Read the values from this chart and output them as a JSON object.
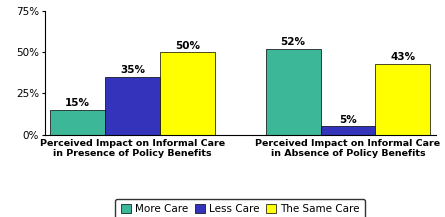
{
  "groups": [
    "Perceived Impact on Informal Care\nin Presence of Policy Benefits",
    "Perceived Impact on Informal Care\nin Absence of Policy Benefits"
  ],
  "series": {
    "More Care": [
      15,
      52
    ],
    "Less Care": [
      35,
      5
    ],
    "The Same Care": [
      50,
      43
    ]
  },
  "colors": {
    "More Care": "#3CB898",
    "Less Care": "#3333BB",
    "The Same Care": "#FFFF00"
  },
  "ylim": [
    0,
    75
  ],
  "yticks": [
    0,
    25,
    50,
    75
  ],
  "ytick_labels": [
    "0%",
    "25%",
    "50%",
    "75%"
  ],
  "bar_width": 0.28,
  "background_color": "#FFFFFF",
  "legend_labels": [
    "More Care",
    "Less Care",
    "The Same Care"
  ],
  "label_fontsize": 7.5,
  "xlabel_fontsize": 6.8,
  "legend_fontsize": 7.5,
  "ytick_fontsize": 7.5
}
